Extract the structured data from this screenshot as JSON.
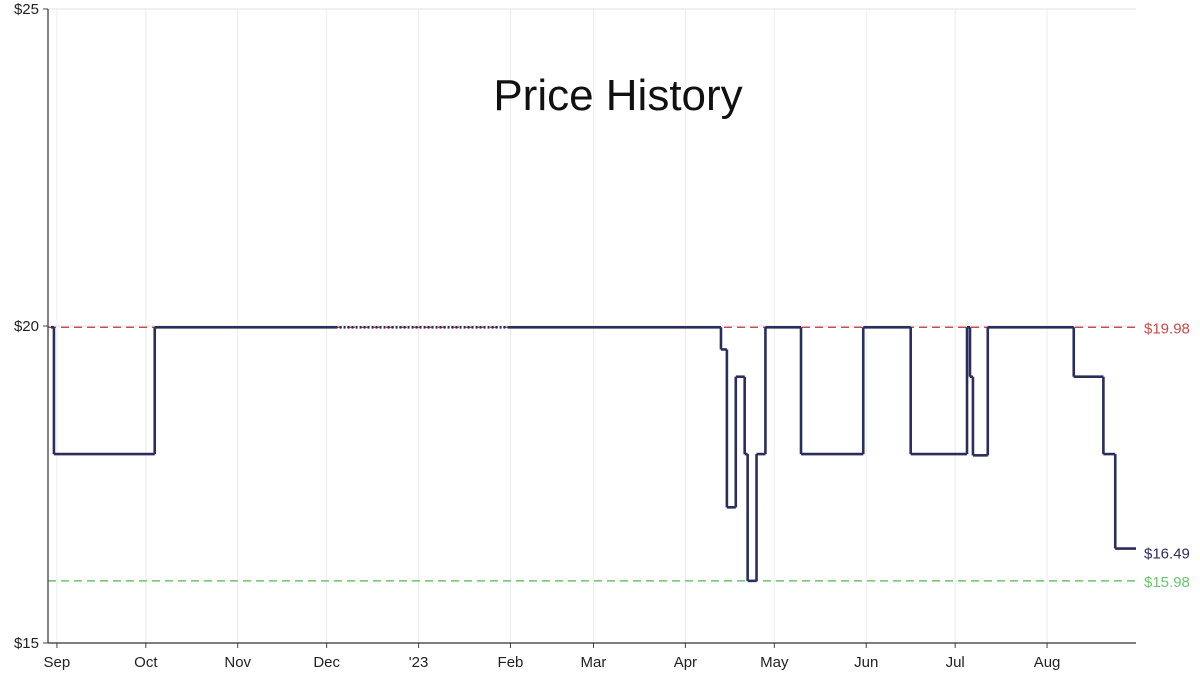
{
  "chart_data": {
    "type": "line",
    "title": "Price History",
    "xlabel": "",
    "ylabel": "",
    "ylim": [
      15,
      25
    ],
    "xlim": [
      "2022-08-29",
      "2023-08-31"
    ],
    "y_ticks": [
      {
        "value": 25,
        "label": "$25"
      },
      {
        "value": 20,
        "label": "$20"
      },
      {
        "value": 15,
        "label": "$15"
      }
    ],
    "x_ticks": [
      {
        "date": "2022-09-01",
        "label": "Sep"
      },
      {
        "date": "2022-10-01",
        "label": "Oct"
      },
      {
        "date": "2022-11-01",
        "label": "Nov"
      },
      {
        "date": "2022-12-01",
        "label": "Dec"
      },
      {
        "date": "2023-01-01",
        "label": "'23"
      },
      {
        "date": "2023-02-01",
        "label": "Feb"
      },
      {
        "date": "2023-03-01",
        "label": "Mar"
      },
      {
        "date": "2023-04-01",
        "label": "Apr"
      },
      {
        "date": "2023-05-01",
        "label": "May"
      },
      {
        "date": "2023-06-01",
        "label": "Jun"
      },
      {
        "date": "2023-07-01",
        "label": "Jul"
      },
      {
        "date": "2023-08-01",
        "label": "Aug"
      }
    ],
    "grid": true,
    "line_type": "step",
    "series": [
      {
        "color": "#2b2d5c",
        "points": [
          {
            "x": "2022-08-30",
            "y": 19.98
          },
          {
            "x": "2022-08-31",
            "y": 17.98
          },
          {
            "x": "2022-10-04",
            "y": 19.98
          },
          {
            "x": "2022-12-04",
            "y": 19.98,
            "dotted_after": true
          },
          {
            "x": "2023-01-31",
            "y": 19.98
          },
          {
            "x": "2023-04-13",
            "y": 19.63
          },
          {
            "x": "2023-04-15",
            "y": 17.14
          },
          {
            "x": "2023-04-18",
            "y": 19.2
          },
          {
            "x": "2023-04-21",
            "y": 17.98
          },
          {
            "x": "2023-04-22",
            "y": 15.98
          },
          {
            "x": "2023-04-25",
            "y": 17.98
          },
          {
            "x": "2023-04-28",
            "y": 19.98
          },
          {
            "x": "2023-05-10",
            "y": 17.98
          },
          {
            "x": "2023-05-31",
            "y": 19.98
          },
          {
            "x": "2023-06-16",
            "y": 17.98
          },
          {
            "x": "2023-07-05",
            "y": 19.98
          },
          {
            "x": "2023-07-06",
            "y": 19.2
          },
          {
            "x": "2023-07-07",
            "y": 17.96
          },
          {
            "x": "2023-07-12",
            "y": 19.98
          },
          {
            "x": "2023-08-10",
            "y": 19.2
          },
          {
            "x": "2023-08-20",
            "y": 17.98
          },
          {
            "x": "2023-08-24",
            "y": 16.49
          },
          {
            "x": "2023-08-24",
            "y": 16.49
          }
        ]
      }
    ],
    "reference_lines": [
      {
        "value": 19.98,
        "label": "$19.98",
        "color": "#c94a4a",
        "style": "dashed"
      },
      {
        "value": 15.98,
        "label": "$15.98",
        "color": "#6cc46c",
        "style": "dashed"
      }
    ],
    "current_price": {
      "value": 16.49,
      "label": "$16.49",
      "color": "#2b2d5c"
    }
  }
}
